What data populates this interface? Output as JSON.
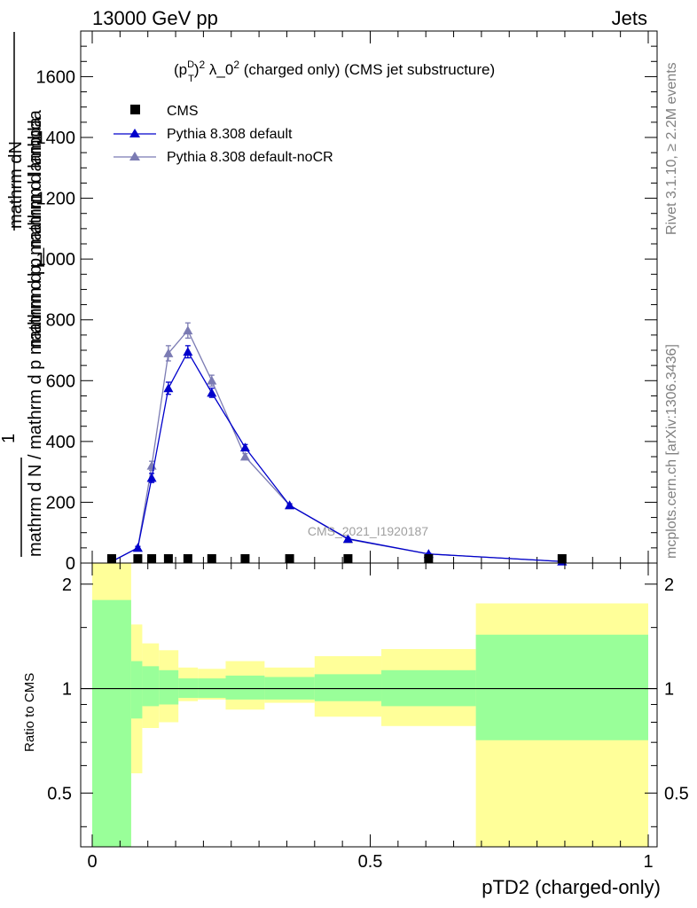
{
  "header": {
    "left": "13000 GeV pp",
    "right": "Jets"
  },
  "side_labels": {
    "rivet": "Rivet 3.1.10, ≥ 2.2M events",
    "mcplots": "mcplots.cern.ch [arXiv:1306.3436]"
  },
  "chart_data": [
    {
      "type": "line",
      "title_parts": {
        "p": "(p",
        "D": "D",
        "T": "T",
        "close": ")",
        "sq1": "2",
        "lambda": " λ_0",
        "sq2": "2",
        "rest": " (charged only) (CMS jet substructure)"
      },
      "ylabel_num": "mathrm dN",
      "ylabel_num_b": "mathrm d p_mathrm d lambda",
      "ylabel_den_1": "1",
      "ylabel_den": "mathrm d N / mathrm d p mathrm d p_mathrm d lambda",
      "watermark": "CMS_2021_I1920187",
      "xlim": [
        0,
        1
      ],
      "ylim": [
        0,
        1750
      ],
      "yticks": [
        "0",
        "200",
        "400",
        "600",
        "800",
        "1000",
        "1200",
        "1400",
        "1600"
      ],
      "ytick_values": [
        0,
        200,
        400,
        600,
        800,
        1000,
        1200,
        1400,
        1600
      ],
      "legend": {
        "cms": "CMS",
        "default": "Pythia 8.308 default",
        "nocr": "Pythia 8.308 default-noCR",
        "placement": "top-left"
      },
      "colors": {
        "cms": "#000000",
        "default": "#0000cc",
        "nocr": "#7b7bb3"
      },
      "cms_points": {
        "x": [
          0.035,
          0.082,
          0.107,
          0.137,
          0.172,
          0.215,
          0.275,
          0.355,
          0.46,
          0.605,
          0.845
        ],
        "y": [
          1,
          3,
          3,
          3,
          3,
          3,
          2,
          1,
          1,
          0.5,
          0.2
        ]
      },
      "series": [
        {
          "name": "Pythia 8.308 default",
          "x": [
            0.035,
            0.082,
            0.107,
            0.137,
            0.172,
            0.215,
            0.275,
            0.355,
            0.46,
            0.605,
            0.845
          ],
          "y": [
            5,
            50,
            280,
            575,
            695,
            560,
            380,
            190,
            80,
            30,
            5
          ],
          "err": [
            0,
            5,
            15,
            20,
            20,
            15,
            10,
            5,
            3,
            2,
            1
          ]
        },
        {
          "name": "Pythia 8.308 default-noCR",
          "x": [
            0.035,
            0.082,
            0.107,
            0.137,
            0.172,
            0.215,
            0.275,
            0.355,
            0.46,
            0.605,
            0.845
          ],
          "y": [
            5,
            50,
            320,
            690,
            765,
            600,
            350,
            190,
            78,
            30,
            5
          ],
          "err": [
            0,
            5,
            15,
            25,
            25,
            18,
            10,
            5,
            3,
            2,
            1
          ]
        }
      ]
    },
    {
      "type": "area",
      "ylabel": "Ratio to CMS",
      "xlabel": "pTD2 (charged-only)",
      "xlim": [
        0,
        1
      ],
      "ylim": [
        0.35,
        2.3
      ],
      "yticks": [
        "0.5",
        "1",
        "2"
      ],
      "ytick_values": [
        0.5,
        1,
        2
      ],
      "xticks": [
        "0",
        "0.5",
        "1"
      ],
      "xtick_values": [
        0,
        0.5,
        1
      ],
      "reference": 1,
      "bands": [
        {
          "x0": 0.0,
          "x1": 0.07,
          "green": [
            0.35,
            1.8
          ],
          "yellow": [
            0.35,
            2.3
          ]
        },
        {
          "x0": 0.07,
          "x1": 0.09,
          "green": [
            0.82,
            1.2
          ],
          "yellow": [
            0.57,
            1.53
          ]
        },
        {
          "x0": 0.09,
          "x1": 0.12,
          "green": [
            0.89,
            1.16
          ],
          "yellow": [
            0.77,
            1.35
          ]
        },
        {
          "x0": 0.12,
          "x1": 0.155,
          "green": [
            0.9,
            1.13
          ],
          "yellow": [
            0.8,
            1.29
          ]
        },
        {
          "x0": 0.155,
          "x1": 0.19,
          "green": [
            0.94,
            1.07
          ],
          "yellow": [
            0.92,
            1.15
          ]
        },
        {
          "x0": 0.19,
          "x1": 0.24,
          "green": [
            0.94,
            1.07
          ],
          "yellow": [
            0.93,
            1.14
          ]
        },
        {
          "x0": 0.24,
          "x1": 0.31,
          "green": [
            0.93,
            1.09
          ],
          "yellow": [
            0.87,
            1.2
          ]
        },
        {
          "x0": 0.31,
          "x1": 0.4,
          "green": [
            0.93,
            1.08
          ],
          "yellow": [
            0.91,
            1.15
          ]
        },
        {
          "x0": 0.4,
          "x1": 0.52,
          "green": [
            0.92,
            1.1
          ],
          "yellow": [
            0.83,
            1.24
          ]
        },
        {
          "x0": 0.52,
          "x1": 0.69,
          "green": [
            0.89,
            1.13
          ],
          "yellow": [
            0.78,
            1.3
          ]
        },
        {
          "x0": 0.69,
          "x1": 1.0,
          "green": [
            0.71,
            1.43
          ],
          "yellow": [
            0.35,
            1.76
          ]
        }
      ]
    }
  ]
}
